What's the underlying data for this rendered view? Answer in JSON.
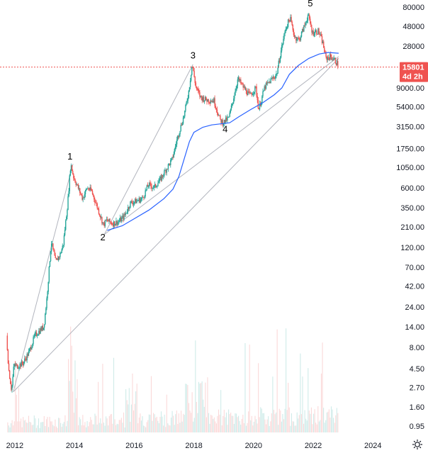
{
  "chart_data": {
    "type": "candlestick",
    "title": "",
    "xlabel": "",
    "ylabel": "",
    "y_scale": "log",
    "ylim": [
      0.8,
      90000
    ],
    "xlim": [
      2011.6,
      2024.8
    ],
    "x_ticks": [
      {
        "value": 2012,
        "label": "2012"
      },
      {
        "value": 2014,
        "label": "2014"
      },
      {
        "value": 2016,
        "label": "2016"
      },
      {
        "value": 2018,
        "label": "2018"
      },
      {
        "value": 2020,
        "label": "2020"
      },
      {
        "value": 2022,
        "label": "2022"
      },
      {
        "value": 2024,
        "label": "2024"
      }
    ],
    "y_ticks": [
      {
        "value": 80000,
        "label": "80000"
      },
      {
        "value": 48000,
        "label": "48000"
      },
      {
        "value": 28000,
        "label": "28000"
      },
      {
        "value": 9000,
        "label": "9000.00"
      },
      {
        "value": 5400,
        "label": "5400.00"
      },
      {
        "value": 3150,
        "label": "3150.00"
      },
      {
        "value": 1750,
        "label": "1750.00"
      },
      {
        "value": 1050,
        "label": "1050.00"
      },
      {
        "value": 600,
        "label": "600.00"
      },
      {
        "value": 350,
        "label": "350.00"
      },
      {
        "value": 210,
        "label": "210.00"
      },
      {
        "value": 120,
        "label": "120.00"
      },
      {
        "value": 70,
        "label": "70.00"
      },
      {
        "value": 42,
        "label": "42.00"
      },
      {
        "value": 24,
        "label": "24.00"
      },
      {
        "value": 14,
        "label": "14.00"
      },
      {
        "value": 8,
        "label": "8.00"
      },
      {
        "value": 4.5,
        "label": "4.50"
      },
      {
        "value": 2.7,
        "label": "2.70"
      },
      {
        "value": 1.6,
        "label": "1.60"
      },
      {
        "value": 0.95,
        "label": "0.95"
      }
    ],
    "current_price": {
      "value": 15801,
      "label": "15801",
      "countdown": "4d 2h"
    },
    "price_path": [
      [
        2011.75,
        11
      ],
      [
        2011.82,
        4.5
      ],
      [
        2011.92,
        2.5
      ],
      [
        2012.0,
        5
      ],
      [
        2012.1,
        4.8
      ],
      [
        2012.3,
        5.2
      ],
      [
        2012.5,
        7
      ],
      [
        2012.7,
        11
      ],
      [
        2012.9,
        13
      ],
      [
        2013.0,
        14
      ],
      [
        2013.1,
        30
      ],
      [
        2013.25,
        140
      ],
      [
        2013.4,
        80
      ],
      [
        2013.55,
        100
      ],
      [
        2013.65,
        130
      ],
      [
        2013.8,
        400
      ],
      [
        2013.9,
        1150
      ],
      [
        2014.0,
        800
      ],
      [
        2014.15,
        600
      ],
      [
        2014.3,
        450
      ],
      [
        2014.45,
        600
      ],
      [
        2014.6,
        550
      ],
      [
        2014.8,
        350
      ],
      [
        2015.0,
        220
      ],
      [
        2015.1,
        250
      ],
      [
        2015.3,
        230
      ],
      [
        2015.5,
        240
      ],
      [
        2015.7,
        280
      ],
      [
        2015.9,
        400
      ],
      [
        2016.1,
        420
      ],
      [
        2016.3,
        450
      ],
      [
        2016.5,
        650
      ],
      [
        2016.7,
        610
      ],
      [
        2016.9,
        750
      ],
      [
        2017.1,
        1000
      ],
      [
        2017.3,
        1300
      ],
      [
        2017.5,
        2500
      ],
      [
        2017.7,
        4300
      ],
      [
        2017.85,
        8000
      ],
      [
        2017.97,
        17000
      ],
      [
        2018.1,
        9000
      ],
      [
        2018.25,
        7000
      ],
      [
        2018.45,
        6500
      ],
      [
        2018.7,
        6400
      ],
      [
        2018.9,
        3800
      ],
      [
        2019.0,
        3500
      ],
      [
        2019.2,
        4000
      ],
      [
        2019.4,
        8000
      ],
      [
        2019.5,
        11500
      ],
      [
        2019.7,
        9000
      ],
      [
        2019.9,
        7300
      ],
      [
        2020.1,
        9000
      ],
      [
        2020.2,
        5000
      ],
      [
        2020.4,
        9200
      ],
      [
        2020.6,
        11000
      ],
      [
        2020.8,
        13000
      ],
      [
        2020.95,
        25000
      ],
      [
        2021.1,
        45000
      ],
      [
        2021.25,
        60000
      ],
      [
        2021.4,
        36000
      ],
      [
        2021.55,
        33000
      ],
      [
        2021.75,
        50000
      ],
      [
        2021.85,
        65000
      ],
      [
        2022.0,
        40000
      ],
      [
        2022.2,
        42000
      ],
      [
        2022.35,
        30000
      ],
      [
        2022.45,
        20000
      ],
      [
        2022.6,
        21000
      ],
      [
        2022.75,
        19000
      ],
      [
        2022.85,
        17000
      ]
    ],
    "moving_average": [
      [
        2015.1,
        190
      ],
      [
        2015.6,
        215
      ],
      [
        2016.0,
        260
      ],
      [
        2016.5,
        330
      ],
      [
        2017.0,
        450
      ],
      [
        2017.3,
        580
      ],
      [
        2017.5,
        820
      ],
      [
        2017.7,
        1400
      ],
      [
        2017.85,
        2100
      ],
      [
        2018.0,
        2700
      ],
      [
        2018.3,
        3100
      ],
      [
        2018.6,
        3300
      ],
      [
        2018.9,
        3400
      ],
      [
        2019.2,
        3500
      ],
      [
        2019.5,
        4100
      ],
      [
        2019.9,
        5000
      ],
      [
        2020.3,
        6000
      ],
      [
        2020.7,
        7500
      ],
      [
        2020.95,
        9000
      ],
      [
        2021.2,
        13000
      ],
      [
        2021.5,
        16500
      ],
      [
        2021.85,
        20000
      ],
      [
        2022.2,
        22500
      ],
      [
        2022.5,
        23500
      ],
      [
        2022.85,
        23000
      ]
    ],
    "trendlines": [
      {
        "from": [
          2011.95,
          2.4
        ],
        "to": [
          2013.95,
          1150
        ]
      },
      {
        "from": [
          2011.95,
          2.4
        ],
        "to": [
          2022.85,
          20000
        ]
      },
      {
        "from": [
          2015.0,
          170
        ],
        "to": [
          2017.97,
          17000
        ]
      },
      {
        "from": [
          2015.0,
          170
        ],
        "to": [
          2022.85,
          21000
        ]
      }
    ],
    "wave_labels": [
      {
        "text": "1",
        "x": 2013.85,
        "y": 1300
      },
      {
        "text": "2",
        "x": 2014.95,
        "y": 145
      },
      {
        "text": "3",
        "x": 2017.97,
        "y": 20000
      },
      {
        "text": "4",
        "x": 2019.05,
        "y": 2700
      },
      {
        "text": "5",
        "x": 2021.9,
        "y": 82000
      }
    ],
    "colors": {
      "up": "#26a69a",
      "down": "#ef5350",
      "moving_average": "#2962ff",
      "trendline": "#b2b5be",
      "price_line": "#ef5350",
      "price_tag": "#ef5350"
    }
  }
}
